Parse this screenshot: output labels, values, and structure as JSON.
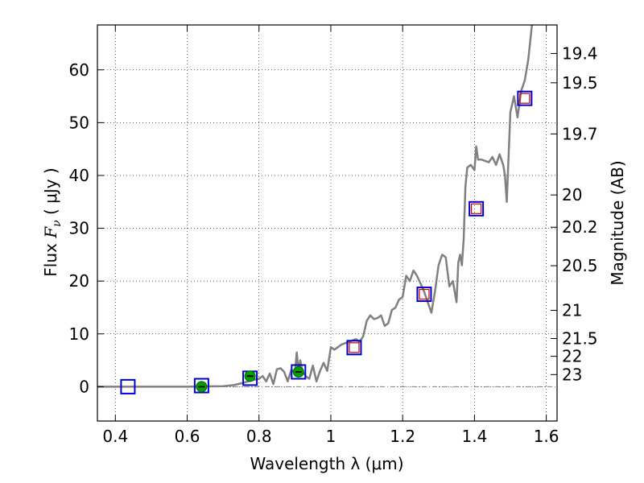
{
  "chart_data": {
    "type": "scatter",
    "title": "",
    "xlabel": "Wavelength  λ (μm)",
    "ylabel": {
      "prefix": "Flux ",
      "symbol": "F",
      "subscript": "ν",
      "units": " ( μJy )"
    },
    "y2label": "Magnitude (AB)",
    "xlim": [
      0.35,
      1.63
    ],
    "ylim": [
      -6.5,
      68.5
    ],
    "grid": true,
    "x_ticks": [
      {
        "value": 0.4,
        "label": "0.4"
      },
      {
        "value": 0.6,
        "label": "0.6"
      },
      {
        "value": 0.8,
        "label": "0.8"
      },
      {
        "value": 1.0,
        "label": "1"
      },
      {
        "value": 1.2,
        "label": "1.2"
      },
      {
        "value": 1.4,
        "label": "1.4"
      },
      {
        "value": 1.6,
        "label": "1.6"
      }
    ],
    "y_ticks": [
      {
        "value": 0,
        "label": "0"
      },
      {
        "value": 10,
        "label": "10"
      },
      {
        "value": 20,
        "label": "20"
      },
      {
        "value": 30,
        "label": "30"
      },
      {
        "value": 40,
        "label": "40"
      },
      {
        "value": 50,
        "label": "50"
      },
      {
        "value": 60,
        "label": "60"
      }
    ],
    "y2_ticks": [
      {
        "mag": 19.4,
        "label": "19.4"
      },
      {
        "mag": 19.5,
        "label": "19.5"
      },
      {
        "mag": 19.7,
        "label": "19.7"
      },
      {
        "mag": 20,
        "label": "20"
      },
      {
        "mag": 20.2,
        "label": "20.2"
      },
      {
        "mag": 20.5,
        "label": "20.5"
      },
      {
        "mag": 21,
        "label": "21"
      },
      {
        "mag": 21.5,
        "label": "21.5"
      },
      {
        "mag": 22,
        "label": "22"
      },
      {
        "mag": 23,
        "label": "23"
      }
    ],
    "series": [
      {
        "kind": "spectrum",
        "color": "#808080",
        "x": [
          0.35,
          0.45,
          0.55,
          0.6,
          0.65,
          0.7,
          0.73,
          0.76,
          0.78,
          0.8,
          0.81,
          0.82,
          0.83,
          0.84,
          0.85,
          0.86,
          0.87,
          0.88,
          0.89,
          0.9,
          0.905,
          0.91,
          0.915,
          0.92,
          0.93,
          0.94,
          0.95,
          0.96,
          0.97,
          0.98,
          0.99,
          1.0,
          1.01,
          1.02,
          1.03,
          1.05,
          1.07,
          1.08,
          1.09,
          1.1,
          1.11,
          1.12,
          1.13,
          1.14,
          1.15,
          1.16,
          1.17,
          1.18,
          1.19,
          1.2,
          1.21,
          1.22,
          1.23,
          1.24,
          1.25,
          1.26,
          1.27,
          1.28,
          1.29,
          1.3,
          1.31,
          1.32,
          1.33,
          1.34,
          1.35,
          1.355,
          1.36,
          1.365,
          1.37,
          1.375,
          1.38,
          1.39,
          1.4,
          1.405,
          1.41,
          1.42,
          1.44,
          1.45,
          1.46,
          1.47,
          1.48,
          1.485,
          1.49,
          1.5,
          1.51,
          1.515,
          1.52,
          1.53,
          1.54,
          1.55,
          1.56
        ],
        "y": [
          0,
          0,
          0,
          0,
          0.05,
          0.1,
          0.3,
          0.8,
          1.2,
          1.5,
          2.0,
          1.0,
          2.5,
          0.5,
          3.3,
          3.5,
          2.8,
          1.0,
          3.2,
          2.5,
          6.5,
          3.0,
          5.0,
          3.0,
          2.0,
          1.5,
          4.0,
          1.0,
          3.0,
          4.5,
          3.0,
          7.5,
          7.0,
          7.5,
          8.0,
          8.5,
          9.0,
          8.5,
          9.5,
          12.5,
          13.5,
          12.8,
          13.0,
          13.5,
          11.5,
          12.0,
          14.5,
          15.0,
          16.5,
          17.0,
          21.0,
          20.0,
          22.0,
          21.0,
          19.5,
          18.0,
          16.0,
          14.0,
          18.0,
          23.0,
          25.0,
          24.5,
          19.0,
          20.0,
          16.0,
          23.5,
          25.0,
          23.0,
          28.0,
          38.0,
          41.5,
          42.0,
          41.0,
          45.5,
          43.0,
          43.0,
          42.5,
          43.5,
          42.0,
          44.0,
          42.0,
          40.0,
          35.0,
          52.0,
          55.0,
          53.0,
          51.0,
          56.0,
          58.0,
          62.0,
          68.5
        ]
      },
      {
        "kind": "model_photometry",
        "marker": "square",
        "color": "#cc0000",
        "x": [
          1.065,
          1.26,
          1.405,
          1.54
        ],
        "y": [
          7.4,
          17.5,
          33.7,
          54.6
        ]
      },
      {
        "kind": "observed_photometry",
        "marker": "square",
        "color": "#0000cc",
        "x": [
          0.435,
          0.64,
          0.775,
          0.91,
          1.065,
          1.26,
          1.405,
          1.54
        ],
        "y": [
          0.0,
          0.2,
          1.6,
          2.8,
          7.4,
          17.5,
          33.7,
          54.6
        ]
      },
      {
        "kind": "detections",
        "marker": "circle",
        "color": "#00a000",
        "x": [
          0.64,
          0.775,
          0.91
        ],
        "y": [
          0.0,
          2.0,
          2.8
        ],
        "error": [
          0.3,
          0.6,
          0.7
        ]
      }
    ],
    "zero_line": {
      "y": 0,
      "style": "dash-dot",
      "color": "#808080"
    }
  }
}
